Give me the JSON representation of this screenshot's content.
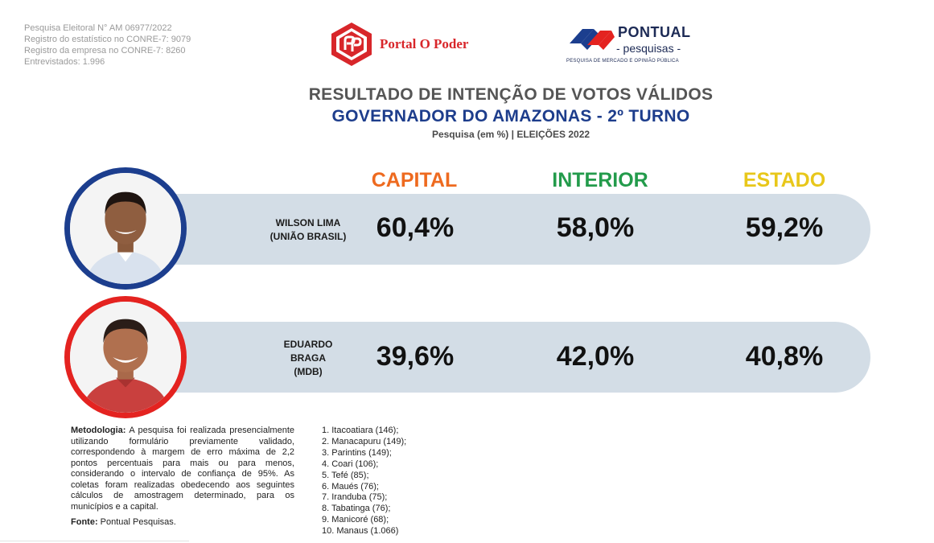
{
  "registry": {
    "line1": "Pesquisa Eleitoral N° AM 06977/2022",
    "line2": "Registro do estatístico no CONRE-7: 9079",
    "line3": "Registro da empresa no CONRE-7: 8260",
    "line4": "Entrevistados: 1.996"
  },
  "logos": {
    "portal": "Portal O Poder",
    "pontual_brand": "PONTUAL",
    "pontual_sub": "- pesquisas -",
    "pontual_tag": "PESQUISA DE MERCADO E OPINIÃO PÚBLICA"
  },
  "titles": {
    "main": "RESULTADO DE INTENÇÃO DE VOTOS VÁLIDOS",
    "sub": "GOVERNADOR DO AMAZONAS - 2º TURNO",
    "note": "Pesquisa (em %) | ELEIÇÕES 2022"
  },
  "columns": {
    "capital": "CAPITAL",
    "interior": "INTERIOR",
    "estado": "ESTADO"
  },
  "candidates": [
    {
      "name_lines": [
        "WILSON LIMA",
        "(UNIÃO BRASIL)"
      ],
      "capital": "60,4%",
      "interior": "58,0%",
      "estado": "59,2%"
    },
    {
      "name_lines": [
        "EDUARDO",
        "BRAGA",
        "(MDB)"
      ],
      "capital": "39,6%",
      "interior": "42,0%",
      "estado": "40,8%"
    }
  ],
  "methodology": {
    "label": "Metodologia:",
    "text": "A pesquisa foi realizada presencialmente utilizando formulário previamente validado, correspondendo à margem de erro máxima de 2,2 pontos percentuais para mais ou para menos, considerando o intervalo de confiança de 95%. As coletas foram realizadas obedecendo aos seguintes cálculos de amostragem determinado, para os municípios e a capital.",
    "source_label": "Fonte:",
    "source": "Pontual Pesquisas."
  },
  "cities": [
    "1. Itacoatiara (146);",
    "2. Manacapuru (149);",
    "3. Parintins (149);",
    "4. Coari (106);",
    "5. Tefé (85);",
    "6. Maués (76);",
    "7. Iranduba (75);",
    "8. Tabatinga (76);",
    "9. Manicoré (68);",
    "10. Manaus (1.066)"
  ],
  "colors": {
    "capital": "#ee6a1f",
    "interior": "#239b4b",
    "estado": "#e8c71a",
    "title_blue": "#1d3d8c",
    "band": "#d3dde6",
    "ring_wilson": "#1c3e8e",
    "ring_braga": "#e42320"
  },
  "icons": {
    "portal_logo": "portal-o-poder-logo-icon",
    "pontual_logo": "pontual-logo-icon",
    "candidate_photo": "person-portrait-icon"
  }
}
